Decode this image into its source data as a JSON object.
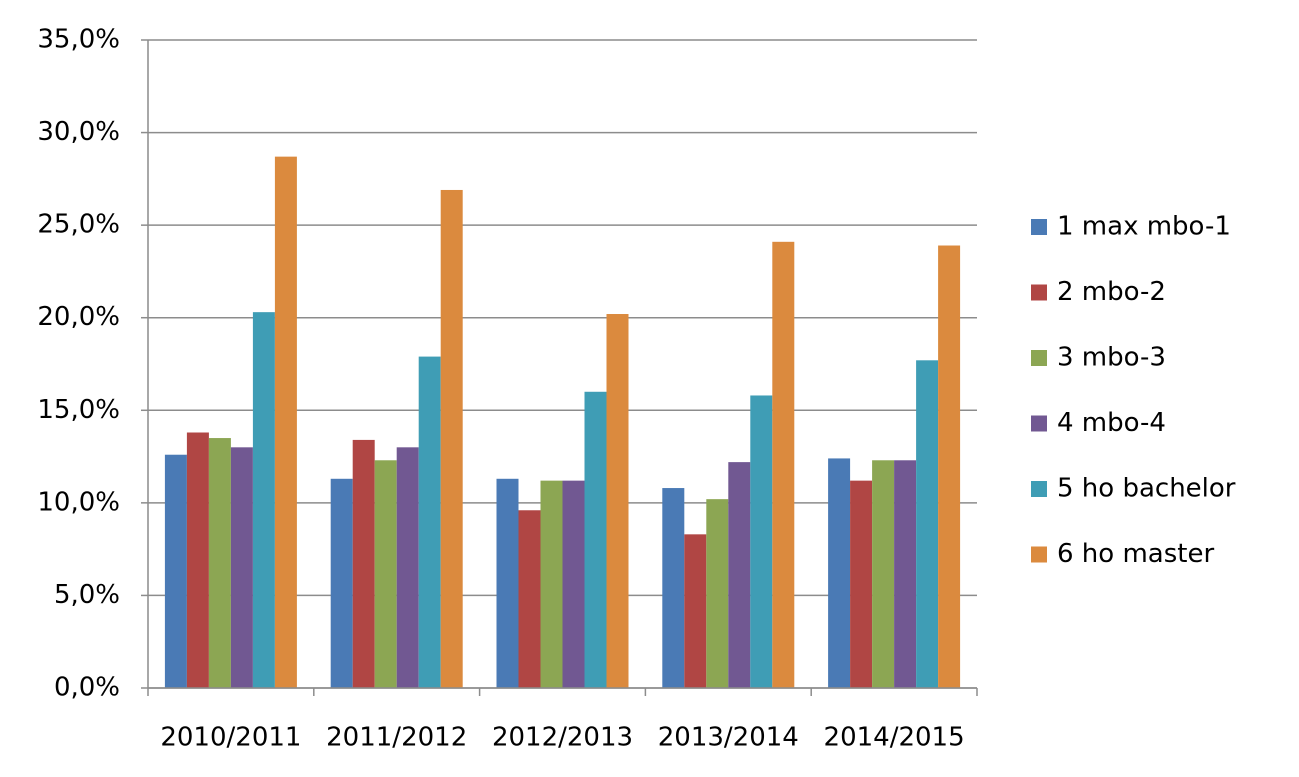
{
  "chart_data": {
    "type": "bar",
    "categories": [
      "2010/2011",
      "2011/2012",
      "2012/2013",
      "2013/2014",
      "2014/2015"
    ],
    "series": [
      {
        "name": "1 max mbo-1",
        "color": "#4a7ab5",
        "values": [
          12.6,
          11.3,
          11.3,
          10.8,
          12.4
        ]
      },
      {
        "name": "2 mbo-2",
        "color": "#b04644",
        "values": [
          13.8,
          13.4,
          9.6,
          8.3,
          11.2
        ]
      },
      {
        "name": "3 mbo-3",
        "color": "#8ca653",
        "values": [
          13.5,
          12.3,
          11.2,
          10.2,
          12.3
        ]
      },
      {
        "name": "4 mbo-4",
        "color": "#715892",
        "values": [
          13.0,
          13.0,
          11.2,
          12.2,
          12.3
        ]
      },
      {
        "name": "5 ho bachelor",
        "color": "#3f9db5",
        "values": [
          20.3,
          17.9,
          16.0,
          15.8,
          17.7
        ]
      },
      {
        "name": "6 ho master",
        "color": "#db8a3e",
        "values": [
          28.7,
          26.9,
          20.2,
          24.1,
          23.9
        ]
      }
    ],
    "ylim": [
      0,
      35
    ],
    "yticks": [
      {
        "value": 0,
        "label": "0,0%"
      },
      {
        "value": 5,
        "label": "5,0%"
      },
      {
        "value": 10,
        "label": "10,0%"
      },
      {
        "value": 15,
        "label": "15,0%"
      },
      {
        "value": 20,
        "label": "20,0%"
      },
      {
        "value": 25,
        "label": "25,0%"
      },
      {
        "value": 30,
        "label": "30,0%"
      },
      {
        "value": 35,
        "label": "35,0%"
      }
    ],
    "grid": true,
    "legend": "right"
  }
}
